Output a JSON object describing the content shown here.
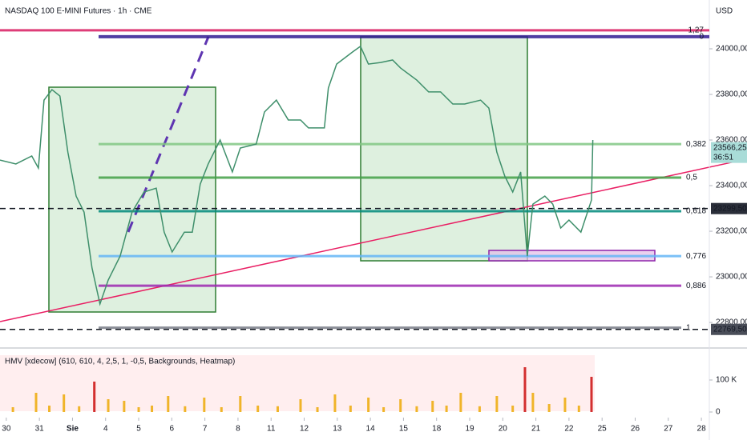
{
  "chart_data": {
    "type": "line",
    "title": "NASDAQ 100 E-MINI Futures · 1h · CME",
    "currency": "USD",
    "x": [
      -0.19,
      0.29,
      0.77,
      0.97,
      1.14,
      1.38,
      1.62,
      1.86,
      2.11,
      2.35,
      2.59,
      2.83,
      3.08,
      3.44,
      3.8,
      4.16,
      4.53,
      4.77,
      5.01,
      5.38,
      5.62,
      5.86,
      6.1,
      6.46,
      6.83,
      7.07,
      7.55,
      7.8,
      8.16,
      8.52,
      8.89,
      9.13,
      9.61,
      9.73,
      9.98,
      10.46,
      10.7,
      10.94,
      11.31,
      11.67,
      11.91,
      12.4,
      12.76,
      13.12,
      13.49,
      13.85,
      14.33,
      14.58,
      14.82,
      15.06,
      15.3,
      15.54,
      15.74,
      15.91,
      16.27,
      16.51,
      16.75,
      17.0,
      17.36,
      17.68,
      17.72
    ],
    "series": [
      {
        "name": "NASDAQ 100 E-MINI Futures",
        "color": "#3f8f6b",
        "values": [
          23512,
          23495,
          23530,
          23477,
          23775,
          23821,
          23793,
          23547,
          23354,
          23284,
          23039,
          22881,
          22986,
          23091,
          23284,
          23372,
          23389,
          23196,
          23109,
          23196,
          23196,
          23407,
          23495,
          23600,
          23460,
          23565,
          23582,
          23723,
          23775,
          23688,
          23688,
          23653,
          23653,
          23828,
          23933,
          23986,
          24011,
          23933,
          23940,
          23951,
          23916,
          23863,
          23811,
          23811,
          23758,
          23758,
          23775,
          23740,
          23547,
          23442,
          23372,
          23460,
          23091,
          23319,
          23354,
          23319,
          23214,
          23249,
          23196,
          23337,
          23600
        ]
      }
    ],
    "xlim": [
      -0.19,
      21.24
    ],
    "xticks": [
      {
        "value": 0,
        "label": "30"
      },
      {
        "value": 1,
        "label": "31"
      },
      {
        "value": 2,
        "label": "Sie"
      },
      {
        "value": 3,
        "label": "4"
      },
      {
        "value": 4,
        "label": "5"
      },
      {
        "value": 5,
        "label": "6"
      },
      {
        "value": 6,
        "label": "7"
      },
      {
        "value": 7,
        "label": "8"
      },
      {
        "value": 8,
        "label": "11"
      },
      {
        "value": 9,
        "label": "12"
      },
      {
        "value": 10,
        "label": "13"
      },
      {
        "value": 11,
        "label": "14"
      },
      {
        "value": 12,
        "label": "15"
      },
      {
        "value": 13,
        "label": "18"
      },
      {
        "value": 14,
        "label": "19"
      },
      {
        "value": 15,
        "label": "20"
      },
      {
        "value": 16,
        "label": "21"
      },
      {
        "value": 17,
        "label": "22"
      },
      {
        "value": 18,
        "label": "25"
      },
      {
        "value": 19,
        "label": "26"
      },
      {
        "value": 20,
        "label": "27"
      },
      {
        "value": 21,
        "label": "28"
      }
    ],
    "ylim": [
      22688,
      24214
    ],
    "yticks": [
      {
        "value": 22800,
        "label": "22800,00"
      },
      {
        "value": 23000,
        "label": "23000,00"
      },
      {
        "value": 23200,
        "label": "23200,00"
      },
      {
        "value": 23400,
        "label": "23400,00"
      },
      {
        "value": 23600,
        "label": "23600,00"
      },
      {
        "value": 23800,
        "label": "23800,00"
      },
      {
        "value": 24000,
        "label": "24000,00"
      }
    ],
    "fib_levels": [
      {
        "level": "1,27",
        "price": 24081,
        "color": "#d81b60"
      },
      {
        "level": "0",
        "price": 24053,
        "color": "#311b92"
      },
      {
        "level": "0,382",
        "price": 23582,
        "color": "#81c784"
      },
      {
        "level": "0,5",
        "price": 23435,
        "color": "#43a047"
      },
      {
        "level": "0,618",
        "price": 23288,
        "color": "#00897b"
      },
      {
        "level": "0,776",
        "price": 23091,
        "color": "#64b5f6"
      },
      {
        "level": "0,886",
        "price": 22961,
        "color": "#9c27b0"
      },
      {
        "level": "1",
        "price": 22777,
        "color": "#787b86"
      }
    ],
    "price_tags": [
      {
        "value": 23566.25,
        "label": "23566,25",
        "color": "#a9dcd8"
      },
      {
        "value": 23299.5,
        "label": "23299,50",
        "color": "#2a2e39"
      },
      {
        "value": 22769.5,
        "label": "22769,50",
        "color": "#4a4e59"
      }
    ],
    "countdown": "36:51",
    "volume": {
      "label": "HMV [xdecow] (610, 610, 4, 2,5, 1, -0,5, Backgrounds, Heatmap)",
      "color": "#f0b429",
      "x": [
        0.2,
        0.9,
        1.3,
        1.74,
        2.2,
        2.66,
        3.08,
        3.56,
        4.0,
        4.4,
        4.89,
        5.4,
        5.98,
        6.5,
        7.07,
        7.6,
        8.2,
        8.89,
        9.4,
        9.93,
        10.4,
        10.94,
        11.4,
        11.91,
        12.4,
        12.88,
        13.3,
        13.73,
        14.3,
        14.82,
        15.3,
        15.67,
        15.91,
        16.4,
        16.88,
        17.3,
        17.68
      ],
      "values": [
        15000,
        60000,
        20000,
        55000,
        18000,
        95000,
        40000,
        35000,
        15000,
        20000,
        50000,
        18000,
        45000,
        15000,
        50000,
        20000,
        18000,
        40000,
        15000,
        55000,
        20000,
        45000,
        15000,
        40000,
        18000,
        35000,
        20000,
        60000,
        18000,
        50000,
        20000,
        140000,
        60000,
        25000,
        45000,
        20000,
        110000
      ],
      "ylim": [
        0,
        192500
      ],
      "yticks": [
        0,
        {
          "value": 100000,
          "label": "100 K"
        }
      ]
    }
  }
}
